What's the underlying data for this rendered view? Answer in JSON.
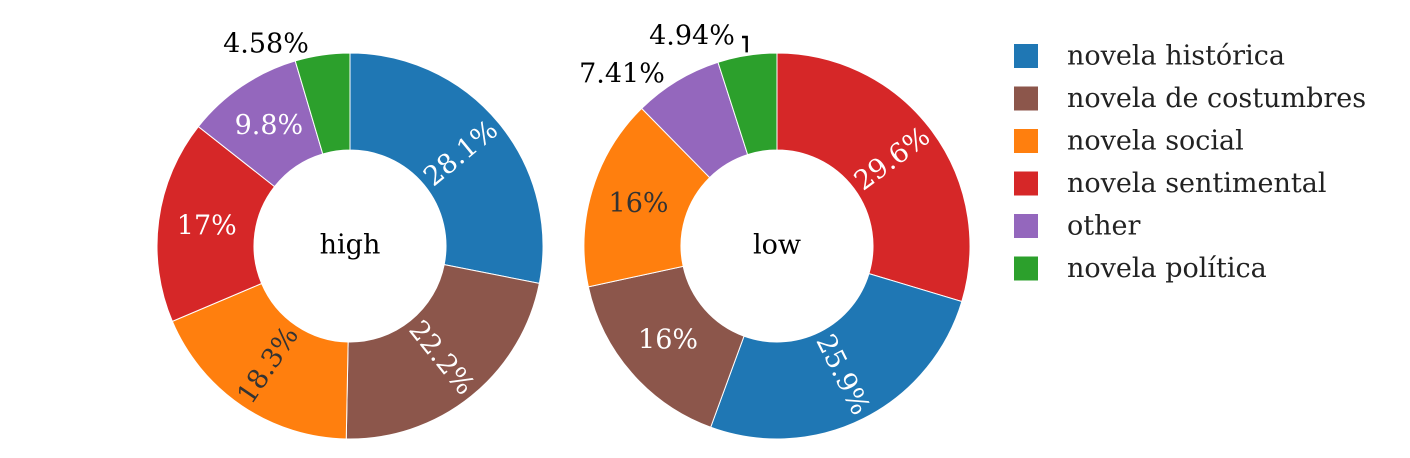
{
  "chart_data": {
    "type": "pie",
    "style": "donut",
    "colors": {
      "novela histórica": "#1f77b4",
      "novela de costumbres": "#8c564b",
      "novela social": "#ff7f0e",
      "novela sentimental": "#d62728",
      "other": "#9467bd",
      "novela política": "#2ca02c"
    },
    "legend": {
      "placement": "right",
      "entries": [
        "novela histórica",
        "novela de costumbres",
        "novela social",
        "novela sentimental",
        "other",
        "novela política"
      ]
    },
    "charts": [
      {
        "center_label": "high",
        "slices": [
          {
            "category": "novela histórica",
            "value": 28.1,
            "label": "28.1%",
            "label_color": "#ffffff"
          },
          {
            "category": "novela de costumbres",
            "value": 22.2,
            "label": "22.2%",
            "label_color": "#ffffff"
          },
          {
            "category": "novela social",
            "value": 18.3,
            "label": "18.3%",
            "label_color": "#333333"
          },
          {
            "category": "novela sentimental",
            "value": 17.0,
            "label": "17%",
            "label_color": "#ffffff"
          },
          {
            "category": "other",
            "value": 9.8,
            "label": "9.8%",
            "label_color": "#ffffff"
          },
          {
            "category": "novela política",
            "value": 4.58,
            "label": "4.58%",
            "label_color": "#000000",
            "outside": true
          }
        ]
      },
      {
        "center_label": "low",
        "slices": [
          {
            "category": "novela sentimental",
            "value": 29.6,
            "label": "29.6%",
            "label_color": "#ffffff"
          },
          {
            "category": "novela histórica",
            "value": 25.9,
            "label": "25.9%",
            "label_color": "#ffffff"
          },
          {
            "category": "novela de costumbres",
            "value": 16.0,
            "label": "16%",
            "label_color": "#ffffff"
          },
          {
            "category": "novela social",
            "value": 16.0,
            "label": "16%",
            "label_color": "#333333"
          },
          {
            "category": "other",
            "value": 7.41,
            "label": "7.41%",
            "label_color": "#000000",
            "outside": true
          },
          {
            "category": "novela política",
            "value": 4.94,
            "label": "4.94%",
            "label_color": "#000000",
            "outside": true,
            "leader_line": true
          }
        ]
      }
    ]
  }
}
